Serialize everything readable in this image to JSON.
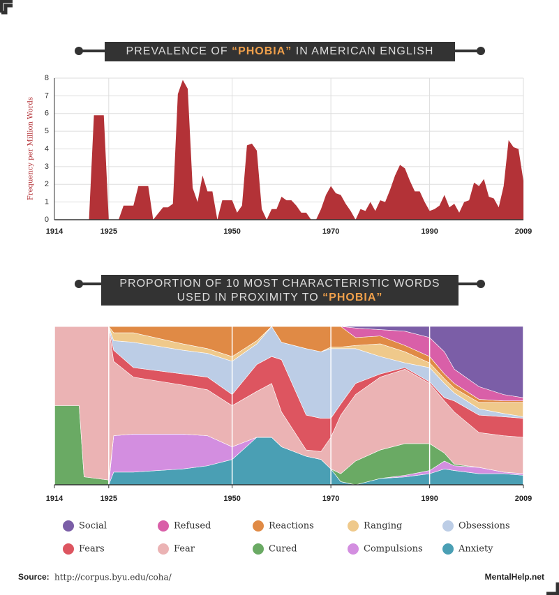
{
  "chart_data": [
    {
      "type": "area",
      "title_parts": [
        "PREVALENCE OF ",
        "“PHOBIA”",
        " IN AMERICAN ENGLISH"
      ],
      "ylabel": "Frequency per Million Words",
      "color": "#b33237",
      "x": [
        1914,
        1921,
        1922,
        1924,
        1925,
        1927,
        1928,
        1930,
        1931,
        1933,
        1934,
        1936,
        1937,
        1938,
        1939,
        1940,
        1941,
        1942,
        1943,
        1944,
        1945,
        1946,
        1947,
        1948,
        1950,
        1951,
        1952,
        1953,
        1954,
        1955,
        1956,
        1957,
        1958,
        1959,
        1960,
        1961,
        1962,
        1963,
        1964,
        1965,
        1966,
        1967,
        1968,
        1969,
        1970,
        1971,
        1972,
        1973,
        1974,
        1975,
        1976,
        1977,
        1978,
        1979,
        1980,
        1981,
        1982,
        1983,
        1984,
        1985,
        1986,
        1987,
        1988,
        1989,
        1990,
        1991,
        1992,
        1993,
        1994,
        1995,
        1996,
        1997,
        1998,
        1999,
        2000,
        2001,
        2002,
        2003,
        2004,
        2005,
        2006,
        2007,
        2008,
        2009
      ],
      "values": [
        0,
        0,
        5.9,
        5.9,
        0,
        0,
        0.8,
        0.8,
        1.9,
        1.9,
        0,
        0.7,
        0.7,
        0.9,
        7.1,
        7.9,
        7.4,
        1.8,
        1.0,
        2.5,
        1.6,
        1.6,
        0,
        1.1,
        1.1,
        0.4,
        0.8,
        4.2,
        4.3,
        3.9,
        0.6,
        0,
        0.6,
        0.6,
        1.3,
        1.1,
        1.1,
        0.8,
        0.4,
        0.4,
        0,
        0,
        0.6,
        1.4,
        1.9,
        1.5,
        1.4,
        0.9,
        0.5,
        0,
        0.6,
        0.5,
        1.0,
        0.5,
        1.1,
        1.0,
        1.7,
        2.5,
        3.1,
        2.9,
        2.2,
        1.6,
        1.6,
        1.0,
        0.5,
        0.6,
        0.8,
        1.4,
        0.7,
        0.9,
        0.4,
        1.0,
        1.1,
        2.1,
        1.9,
        2.3,
        1.3,
        1.2,
        0.7,
        1.9,
        4.5,
        4.1,
        4.0,
        2.2
      ],
      "xlim": [
        1914,
        2009
      ],
      "xticks": [
        1914,
        1925,
        1950,
        1970,
        1990,
        2009
      ],
      "ylim": [
        0,
        8
      ],
      "yticks": [
        0,
        1,
        2,
        3,
        4,
        5,
        6,
        7,
        8
      ],
      "grid": true
    },
    {
      "type": "stacked_area",
      "title_lines": [
        "PROPORTION OF 10 MOST CHARACTERISTIC WORDS",
        "USED IN PROXIMITY TO "
      ],
      "title_highlight": "“PHOBIA”",
      "x": [
        1914,
        1919,
        1920,
        1925,
        1926,
        1930,
        1940,
        1945,
        1950,
        1955,
        1958,
        1960,
        1965,
        1968,
        1970,
        1972,
        1975,
        1980,
        1985,
        1990,
        1993,
        1995,
        2000,
        2005,
        2009
      ],
      "xlim": [
        1914,
        2009
      ],
      "xticks": [
        1914,
        1925,
        1950,
        1970,
        1990,
        2009
      ],
      "ylim": [
        0,
        100
      ],
      "grid": true,
      "series": [
        {
          "name": "Anxiety",
          "color": "#4a9fb4",
          "values": [
            0,
            0,
            0,
            0,
            8,
            8,
            10,
            12,
            16,
            30,
            30,
            24,
            18,
            16,
            10,
            2,
            0,
            4,
            5,
            7,
            10,
            9,
            7,
            7,
            6
          ]
        },
        {
          "name": "Compulsions",
          "color": "#d38ee0",
          "values": [
            0,
            0,
            0,
            0,
            23,
            24,
            22,
            19,
            8,
            0,
            0,
            0,
            0,
            0,
            0,
            0,
            0,
            0,
            1,
            2,
            5,
            3,
            4,
            1,
            1
          ]
        },
        {
          "name": "Cured",
          "color": "#6aaa64",
          "values": [
            50,
            50,
            5,
            3,
            0,
            0,
            0,
            0,
            0,
            0,
            0,
            0,
            0,
            0,
            0,
            5,
            15,
            18,
            20,
            17,
            5,
            1,
            0,
            0,
            0
          ]
        },
        {
          "name": "Fear",
          "color": "#ebb3b4",
          "values": [
            50,
            50,
            95,
            97,
            47,
            36,
            31,
            29,
            26,
            29,
            34,
            22,
            4,
            5,
            20,
            37,
            42,
            46,
            47,
            38,
            33,
            33,
            22,
            23,
            23
          ]
        },
        {
          "name": "Fears",
          "color": "#dd5560",
          "values": [
            0,
            0,
            0,
            0,
            7,
            6,
            7,
            8,
            7,
            17,
            17,
            33,
            22,
            21,
            12,
            7,
            7,
            2,
            1,
            1,
            2,
            7,
            11,
            12,
            12
          ]
        },
        {
          "name": "Obsessions",
          "color": "#bccde6",
          "values": [
            0,
            0,
            0,
            0,
            6,
            16,
            15,
            15,
            21,
            13,
            19,
            11,
            42,
            42,
            44,
            35,
            22,
            11,
            3,
            9,
            9,
            5,
            4,
            2,
            1
          ]
        },
        {
          "name": "Ranging",
          "color": "#efc98b",
          "values": [
            0,
            0,
            0,
            0,
            5,
            6,
            4,
            3,
            3,
            2,
            0,
            0,
            0,
            0,
            1,
            1,
            2,
            8,
            7,
            3,
            3,
            3,
            4,
            7,
            9
          ]
        },
        {
          "name": "Reactions",
          "color": "#e08a45",
          "values": [
            0,
            0,
            0,
            0,
            4,
            4,
            11,
            14,
            19,
            9,
            0,
            10,
            14,
            16,
            13,
            13,
            5,
            5,
            4,
            4,
            3,
            3,
            2,
            1,
            1
          ]
        },
        {
          "name": "Refused",
          "color": "#d95fa8",
          "values": [
            0,
            0,
            0,
            0,
            0,
            0,
            0,
            0,
            0,
            0,
            0,
            0,
            0,
            0,
            0,
            0,
            6,
            4,
            9,
            12,
            14,
            9,
            8,
            4,
            2
          ]
        },
        {
          "name": "Social",
          "color": "#7b5ea7",
          "values": [
            0,
            0,
            0,
            0,
            0,
            0,
            0,
            0,
            0,
            0,
            0,
            0,
            0,
            0,
            0,
            0,
            1,
            2,
            3,
            7,
            16,
            27,
            38,
            43,
            45
          ]
        }
      ]
    }
  ],
  "footer": {
    "source_label": "Source:",
    "source": "http://corpus.byu.edu/coha/",
    "brand": "MentalHelp.net"
  }
}
